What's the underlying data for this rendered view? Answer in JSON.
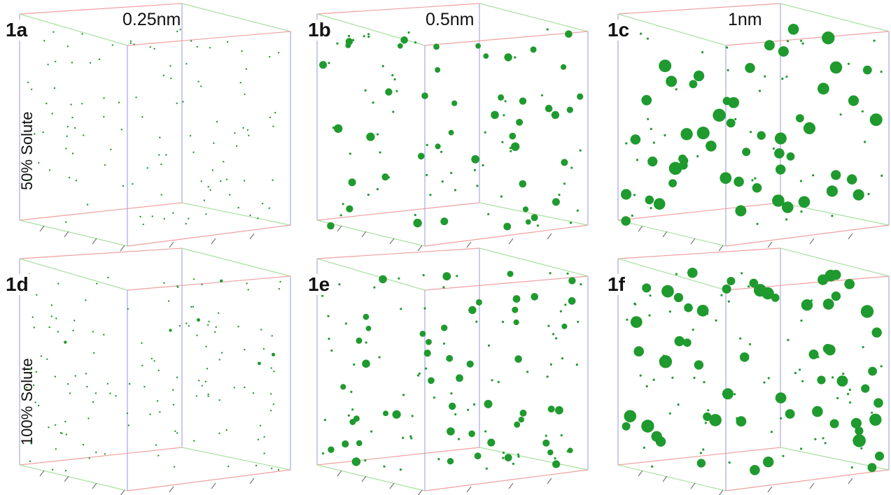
{
  "column_titles": [
    "0.25nm",
    "0.5nm",
    "1nm"
  ],
  "row_labels": [
    "50% Solute",
    "100% Solute"
  ],
  "panels": [
    {
      "label": "1a",
      "radius_nm": 0.25,
      "solute": "50%"
    },
    {
      "label": "1b",
      "radius_nm": 0.5,
      "solute": "50%"
    },
    {
      "label": "1c",
      "radius_nm": 1,
      "solute": "50%"
    },
    {
      "label": "1d",
      "radius_nm": 0.25,
      "solute": "100%"
    },
    {
      "label": "1e",
      "radius_nm": 0.5,
      "solute": "100%"
    },
    {
      "label": "1f",
      "radius_nm": 1,
      "solute": "100%"
    }
  ],
  "colors": {
    "particle": "#1f9a2e",
    "edge_red": "#f0a0a0",
    "edge_green": "#a8e0a0",
    "edge_blue": "#a8a8e8",
    "tick": "#777777"
  }
}
